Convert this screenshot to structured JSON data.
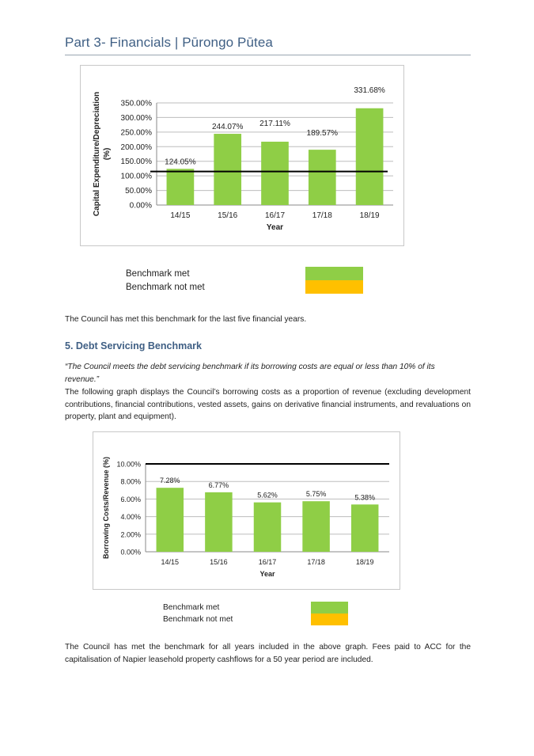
{
  "header": {
    "title": "Part 3- Financials | Pūrongo Pūtea"
  },
  "chart1": {
    "legend": {
      "met": "Benchmark met",
      "not_met": "Benchmark not met"
    }
  },
  "chart2": {
    "legend": {
      "met": "Benchmark met",
      "not_met": "Benchmark not met"
    }
  },
  "text": {
    "para1": "The Council has met this benchmark for the last five financial years.",
    "heading": "5. Debt Servicing Benchmark",
    "quote": "“The Council meets the debt servicing benchmark if its borrowing costs are equal or less than 10% of its revenue.”",
    "para2": "The following graph displays the Council’s borrowing costs as a proportion of revenue (excluding development contributions, financial contributions, vested assets, gains on derivative financial instruments, and revaluations on property, plant and equipment).",
    "para3": "The Council has met the benchmark for all years included in the above graph.  Fees paid to ACC for the capitalisation of Napier leasehold property cashflows for a 50 year period are included."
  },
  "colors": {
    "met": "#8fce46",
    "not_met": "#ffc000",
    "benchmark_line": "#000000",
    "heading": "#3f5f84"
  },
  "chart_data": [
    {
      "type": "bar",
      "categories": [
        "14/15",
        "15/16",
        "16/17",
        "17/18",
        "18/19"
      ],
      "values": [
        124.05,
        244.07,
        217.11,
        189.57,
        331.68
      ],
      "data_labels": [
        "124.05%",
        "244.07%",
        "217.11%",
        "189.57%",
        "331.68%"
      ],
      "y_ticks": [
        "0.00%",
        "50.00%",
        "100.00%",
        "150.00%",
        "200.00%",
        "250.00%",
        "300.00%",
        "350.00%"
      ],
      "ylim": [
        0,
        350
      ],
      "benchmark": 115,
      "xlabel": "Year",
      "ylabel": "Capital Expenditure/Depreciation (%)",
      "grid": true,
      "legend": "below"
    },
    {
      "type": "bar",
      "categories": [
        "14/15",
        "15/16",
        "16/17",
        "17/18",
        "18/19"
      ],
      "values": [
        7.28,
        6.77,
        5.62,
        5.75,
        5.38
      ],
      "data_labels": [
        "7.28%",
        "6.77%",
        "5.62%",
        "5.75%",
        "5.38%"
      ],
      "y_ticks": [
        "0.00%",
        "2.00%",
        "4.00%",
        "6.00%",
        "8.00%",
        "10.00%"
      ],
      "ylim": [
        0,
        10
      ],
      "benchmark": 10,
      "xlabel": "Year",
      "ylabel": "Borrowing Costs/Revenue (%)",
      "grid": true,
      "legend": "below"
    }
  ]
}
